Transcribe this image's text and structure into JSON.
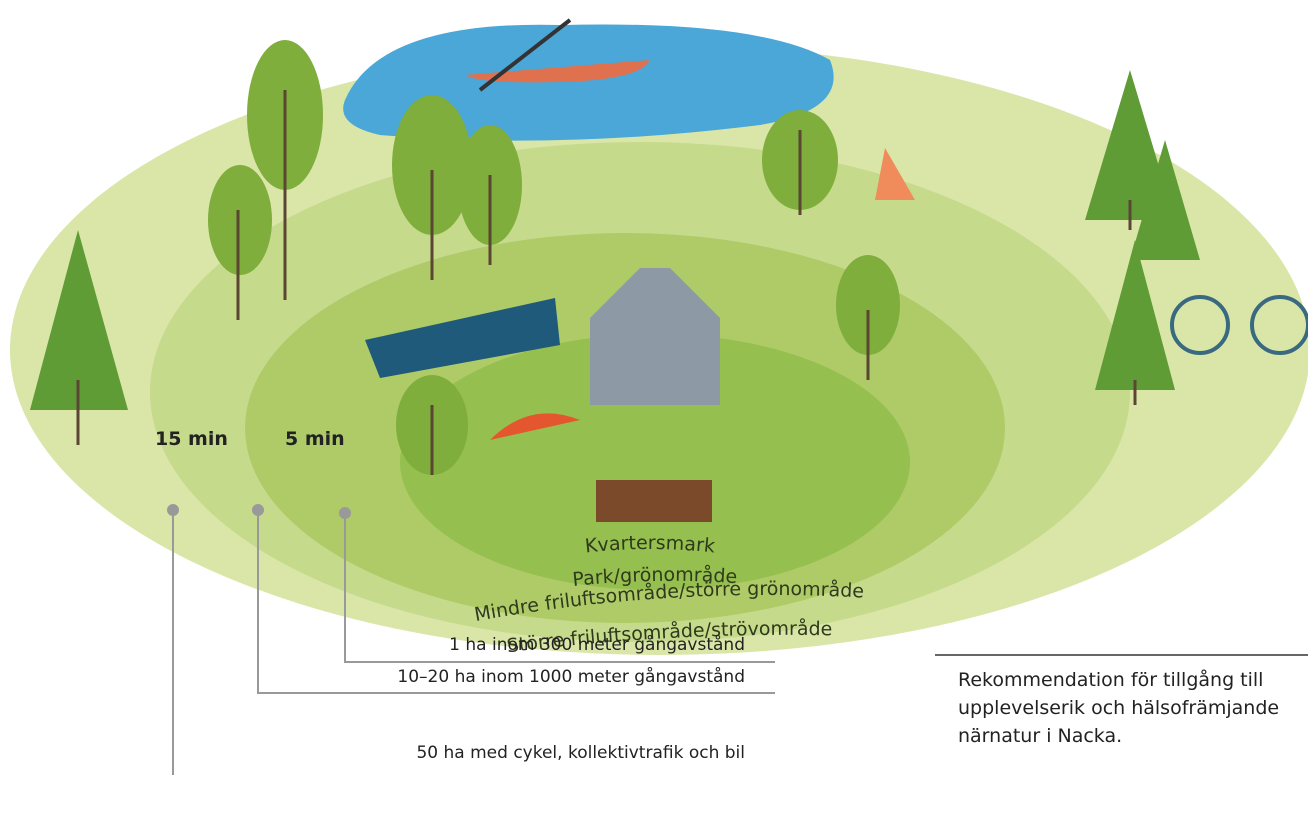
{
  "zones": {
    "labels": [
      "15 min",
      "5 min"
    ],
    "rings": [
      "Kvartersmark",
      "Park/grönområde",
      "Mindre friluftsområde/större grönområde",
      "Större friluftsområde/strövområde"
    ]
  },
  "callouts": [
    "1 ha inom 300 meter gångavstånd",
    "10–20 ha inom 1000 meter gångavstånd",
    "50 ha med cykel, kollektivtrafik och bil"
  ],
  "caption": "Rekommendation för tillgång till upplevelserik och hälsofrämjande närnatur i Nacka."
}
